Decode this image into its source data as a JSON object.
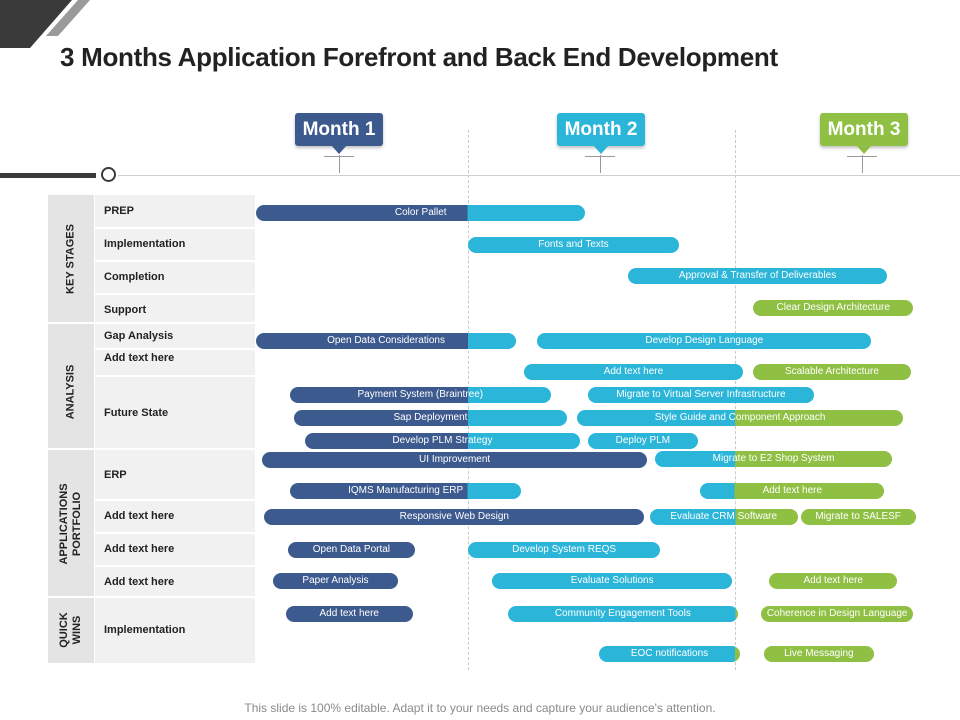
{
  "title": "3 Months Application Forefront and Back End Development",
  "footer": "This slide is 100% editable. Adapt it to your needs and capture your audience's attention.",
  "colors": {
    "month1": "#3d5a8f",
    "month2": "#2bb5d8",
    "month3": "#8fc044",
    "dark": "#3a3a3a",
    "gray": "#9a9a9a"
  },
  "months": [
    "Month 1",
    "Month 2",
    "Month 3"
  ],
  "categories": [
    {
      "label_lines": [
        "KEY  STAGES"
      ],
      "rows": [
        "PREP",
        "Implementation",
        "Completion",
        "Support"
      ]
    },
    {
      "label_lines": [
        "ANALYSIS"
      ],
      "rows": [
        "Gap Analysis",
        "Add text here",
        "Future State"
      ]
    },
    {
      "label_lines": [
        "APPLICATIONS",
        "PORTFOLIO"
      ],
      "rows": [
        "ERP",
        "Add text here",
        "Add text here",
        "Add text here"
      ]
    },
    {
      "label_lines": [
        "QUICK",
        "WINS"
      ],
      "rows": [
        "Implementation"
      ]
    }
  ],
  "chart_data": {
    "type": "gantt",
    "time_axis": [
      "Month 1",
      "Month 2",
      "Month 3"
    ],
    "tasks": [
      {
        "label": "Color Pallet",
        "start": 0.0,
        "end": 1.44,
        "colors": [
          "#3d5a8f",
          "#2bb5d8"
        ]
      },
      {
        "label": "Fonts and Texts",
        "start": 1.0,
        "end": 1.79,
        "colors": [
          "#2bb5d8"
        ]
      },
      {
        "label": "Approval & Transfer of Deliverables",
        "start": 1.6,
        "end": 2.58,
        "colors": [
          "#2bb5d8"
        ]
      },
      {
        "label": "Clear Design Architecture",
        "start": 2.07,
        "end": 2.68,
        "colors": [
          "#8fc044"
        ]
      },
      {
        "label": "Open Data Considerations",
        "start": 0.0,
        "end": 1.18,
        "colors": [
          "#3d5a8f",
          "#2bb5d8"
        ]
      },
      {
        "label": "Develop Design Language",
        "start": 1.26,
        "end": 2.52,
        "colors": [
          "#2bb5d8"
        ]
      },
      {
        "label": "Add text here",
        "start": 1.21,
        "end": 2.03,
        "colors": [
          "#2bb5d8"
        ]
      },
      {
        "label": "Scalable Architecture",
        "start": 2.07,
        "end": 2.67,
        "colors": [
          "#8fc044"
        ]
      },
      {
        "label": "Payment System (Braintree)",
        "start": 0.16,
        "end": 1.31,
        "colors": [
          "#3d5a8f",
          "#2bb5d8"
        ]
      },
      {
        "label": "Migrate to Virtual Server Infrastructure",
        "start": 1.45,
        "end": 2.3,
        "colors": [
          "#2bb5d8"
        ]
      },
      {
        "label": "Sap Deployment",
        "start": 0.18,
        "end": 1.37,
        "colors": [
          "#3d5a8f",
          "#2bb5d8"
        ]
      },
      {
        "label": "Style Guide and Component  Approach",
        "start": 1.41,
        "end": 2.64,
        "colors": [
          "#2bb5d8",
          "#8fc044"
        ]
      },
      {
        "label": "Develop PLM  Strategy",
        "start": 0.23,
        "end": 1.42,
        "colors": [
          "#3d5a8f",
          "#2bb5d8"
        ]
      },
      {
        "label": "Deploy PLM",
        "start": 1.45,
        "end": 1.86,
        "colors": [
          "#2bb5d8"
        ]
      },
      {
        "label": "UI Improvement",
        "start": 0.03,
        "end": 1.67,
        "colors": [
          "#3d5a8f"
        ]
      },
      {
        "label": "Migrate to E2 Shop System",
        "start": 1.7,
        "end": 2.6,
        "colors": [
          "#2bb5d8",
          "#8fc044"
        ]
      },
      {
        "label": "IQMS  Manufacturing ERP",
        "start": 0.16,
        "end": 1.2,
        "colors": [
          "#3d5a8f",
          "#2bb5d8"
        ]
      },
      {
        "label": "Add text here",
        "start": 1.87,
        "end": 2.57,
        "colors": [
          "#2bb5d8",
          "#8fc044"
        ]
      },
      {
        "label": "Responsive Web Design",
        "start": 0.04,
        "end": 1.66,
        "colors": [
          "#3d5a8f"
        ]
      },
      {
        "label": "Evaluate  CRM  Software",
        "start": 1.68,
        "end": 2.24,
        "colors": [
          "#2bb5d8",
          "#8fc044"
        ]
      },
      {
        "label": "Migrate to  SALESF",
        "start": 2.25,
        "end": 2.69,
        "colors": [
          "#8fc044"
        ]
      },
      {
        "label": "Open Data Portal",
        "start": 0.15,
        "end": 0.75,
        "colors": [
          "#3d5a8f"
        ]
      },
      {
        "label": "Develop System REQS",
        "start": 1.0,
        "end": 1.72,
        "colors": [
          "#2bb5d8"
        ]
      },
      {
        "label": "Paper Analysis",
        "start": 0.08,
        "end": 0.67,
        "colors": [
          "#3d5a8f"
        ]
      },
      {
        "label": "Evaluate Solutions",
        "start": 1.09,
        "end": 1.99,
        "colors": [
          "#2bb5d8"
        ]
      },
      {
        "label": "Add text here",
        "start": 2.13,
        "end": 2.62,
        "colors": [
          "#8fc044"
        ]
      },
      {
        "label": "Add text here",
        "start": 0.14,
        "end": 0.74,
        "colors": [
          "#3d5a8f"
        ]
      },
      {
        "label": "Community  Engagement  Tools",
        "start": 1.15,
        "end": 2.01,
        "colors": [
          "#2bb5d8",
          "#8fc044"
        ]
      },
      {
        "label": "Coherence in Design Language",
        "start": 2.1,
        "end": 2.68,
        "colors": [
          "#8fc044"
        ]
      },
      {
        "label": "EOC  notifications",
        "start": 1.49,
        "end": 2.02,
        "colors": [
          "#2bb5d8",
          "#8fc044"
        ]
      },
      {
        "label": "Live Messaging",
        "start": 2.11,
        "end": 2.53,
        "colors": [
          "#8fc044"
        ]
      }
    ]
  }
}
